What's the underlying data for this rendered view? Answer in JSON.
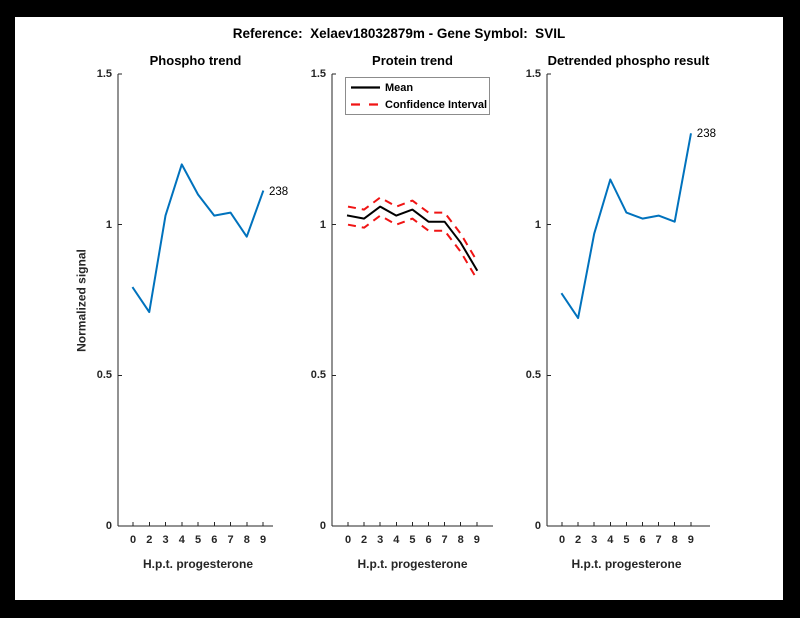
{
  "window": {
    "background_color": "#000000",
    "canvas_color": "#FFFFFF"
  },
  "figure": {
    "title": "Reference:  Xelaev18032879m - Gene Symbol:  SVIL"
  },
  "colors": {
    "line_blue": "#0072BD",
    "line_black": "#000000",
    "line_red": "#F01414",
    "axis": "#262626"
  },
  "chart_data": [
    {
      "type": "line",
      "title": "Phospho trend",
      "xlabel": "H.p.t. progesterone",
      "ylabel": "Normalized signal",
      "x_tick_labels": [
        "0",
        "2",
        "3",
        "4",
        "5",
        "6",
        "7",
        "8",
        "9"
      ],
      "y_ticks": [
        0,
        0.5,
        1,
        1.5
      ],
      "y_tick_labels": [
        "0",
        "0.5",
        "1",
        "1.5"
      ],
      "ylim": [
        0,
        1.5
      ],
      "grid": false,
      "series": [
        {
          "name": "phospho-signal",
          "color": "#0072BD",
          "style": "solid",
          "values": [
            0.79,
            0.71,
            1.03,
            1.2,
            1.1,
            1.03,
            1.04,
            0.96,
            1.11
          ]
        }
      ],
      "annotation": {
        "text": "238",
        "at_index": 8
      }
    },
    {
      "type": "line",
      "title": "Protein trend",
      "xlabel": "H.p.t. progesterone",
      "ylabel": "",
      "x_tick_labels": [
        "0",
        "2",
        "3",
        "4",
        "5",
        "6",
        "7",
        "8",
        "9"
      ],
      "y_ticks": [
        0,
        0.5,
        1,
        1.5
      ],
      "y_tick_labels": [
        "0",
        "0.5",
        "1",
        "1.5"
      ],
      "ylim": [
        0,
        1.5
      ],
      "grid": false,
      "legend": [
        "Mean",
        "Confidence Interval"
      ],
      "legend_position": "northwest",
      "series": [
        {
          "name": "mean",
          "color": "#000000",
          "style": "solid",
          "values": [
            1.03,
            1.02,
            1.06,
            1.03,
            1.05,
            1.01,
            1.01,
            0.94,
            0.85
          ]
        },
        {
          "name": "ci-upper",
          "color": "#F01414",
          "style": "dashed",
          "values": [
            1.06,
            1.05,
            1.09,
            1.06,
            1.08,
            1.04,
            1.04,
            0.97,
            0.88
          ]
        },
        {
          "name": "ci-lower",
          "color": "#F01414",
          "style": "dashed",
          "values": [
            1.0,
            0.99,
            1.03,
            1.0,
            1.02,
            0.98,
            0.98,
            0.91,
            0.82
          ]
        }
      ]
    },
    {
      "type": "line",
      "title": "Detrended phospho result",
      "xlabel": "H.p.t. progesterone",
      "ylabel": "",
      "x_tick_labels": [
        "0",
        "2",
        "3",
        "4",
        "5",
        "6",
        "7",
        "8",
        "9"
      ],
      "y_ticks": [
        0,
        0.5,
        1,
        1.5
      ],
      "y_tick_labels": [
        "0",
        "0.5",
        "1",
        "1.5"
      ],
      "ylim": [
        0,
        1.5
      ],
      "grid": false,
      "series": [
        {
          "name": "detrended-phospho",
          "color": "#0072BD",
          "style": "solid",
          "values": [
            0.77,
            0.69,
            0.97,
            1.15,
            1.04,
            1.02,
            1.03,
            1.01,
            1.3
          ]
        }
      ],
      "annotation": {
        "text": "238",
        "at_index": 8
      }
    }
  ]
}
